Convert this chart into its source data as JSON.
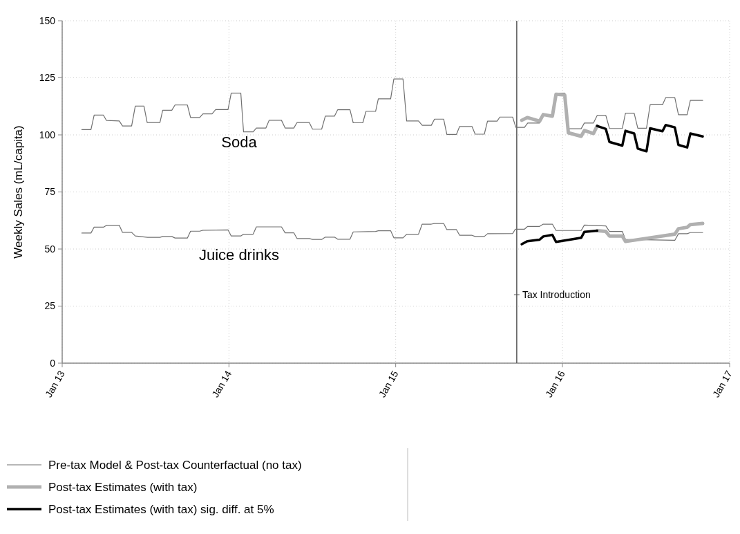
{
  "chart_data": {
    "type": "line",
    "ylabel": "Weekly Sales (mL/capita)",
    "xlim": [
      "2013-01-01",
      "2017-01-01"
    ],
    "ylim": [
      0,
      150
    ],
    "xticks": [
      {
        "value": "2013-01-01",
        "label": "Jan 13"
      },
      {
        "value": "2014-01-01",
        "label": "Jan 14"
      },
      {
        "value": "2015-01-01",
        "label": "Jan 15"
      },
      {
        "value": "2016-01-01",
        "label": "Jan 16"
      },
      {
        "value": "2017-01-01",
        "label": "Jan 17"
      }
    ],
    "yticks": [
      0,
      25,
      50,
      75,
      100,
      125,
      150
    ],
    "grid": true,
    "legend": "bottom",
    "ref_lines": [
      {
        "axis": "x",
        "value": "2015-09-23",
        "label": "Tax Introduction",
        "color": "#555555"
      }
    ],
    "annotations": [
      "Soda",
      "Juice drinks"
    ],
    "series": [
      {
        "name": "Pre-tax Model & Post-tax Counterfactual (no tax)",
        "color": "#707070",
        "x": [
          "2013-02-13",
          "2013-03-05",
          "2013-03-12",
          "2013-04-01",
          "2013-04-08",
          "2013-05-06",
          "2013-05-13",
          "2013-06-02",
          "2013-06-10",
          "2013-06-29",
          "2013-07-06",
          "2013-08-03",
          "2013-08-09",
          "2013-08-29",
          "2013-09-05",
          "2013-10-02",
          "2013-10-09",
          "2013-10-29",
          "2013-11-05",
          "2013-11-25",
          "2013-12-03",
          "2013-12-30",
          "2014-01-06",
          "2014-01-27",
          "2014-02-02",
          "2014-02-23",
          "2014-03-02",
          "2014-03-23",
          "2014-03-30",
          "2014-04-26",
          "2014-05-04",
          "2014-05-23",
          "2014-05-30",
          "2014-06-26",
          "2014-07-03",
          "2014-07-23",
          "2014-07-31",
          "2014-08-20",
          "2014-08-27",
          "2014-09-23",
          "2014-09-30",
          "2014-10-21",
          "2014-10-28",
          "2014-11-18",
          "2014-11-24",
          "2014-12-21",
          "2014-12-28",
          "2015-01-17",
          "2015-01-25",
          "2015-02-20",
          "2015-02-28",
          "2015-03-20",
          "2015-03-27",
          "2015-04-16",
          "2015-04-23",
          "2015-05-14",
          "2015-05-21",
          "2015-06-17",
          "2015-06-24",
          "2015-07-14",
          "2015-07-21",
          "2015-08-11",
          "2015-08-17",
          "2015-09-14",
          "2015-09-21",
          "2015-10-10",
          "2015-10-17",
          "2015-11-12",
          "2015-11-20",
          "2015-12-10",
          "2015-12-18",
          "2016-01-06",
          "2016-01-14",
          "2016-02-11",
          "2016-02-18",
          "2016-03-09",
          "2016-03-17",
          "2016-04-05",
          "2016-04-13",
          "2016-05-11",
          "2016-05-18",
          "2016-06-06",
          "2016-06-14",
          "2016-07-03",
          "2016-07-11",
          "2016-08-07",
          "2016-08-14",
          "2016-09-03",
          "2016-09-11",
          "2016-09-30",
          "2016-10-07",
          "2016-11-03"
        ],
        "values": [
          102.3,
          102.3,
          108.7,
          108.7,
          106.3,
          106.1,
          103.9,
          103.9,
          112.6,
          112.6,
          105.4,
          105.4,
          110.8,
          110.8,
          113.1,
          113.1,
          107.6,
          107.6,
          109.2,
          109.2,
          111.1,
          111.1,
          118.3,
          118.3,
          101.3,
          101.3,
          103,
          103,
          106.4,
          106.4,
          103,
          103,
          105.4,
          105.4,
          102.5,
          102.5,
          108.2,
          108.2,
          111,
          111,
          105.3,
          105.3,
          110.3,
          110.3,
          115.8,
          115.8,
          124.5,
          124.5,
          106.1,
          106.1,
          104.2,
          104.2,
          106.9,
          106.9,
          100.2,
          100.2,
          103.7,
          103.7,
          100.3,
          100.3,
          106,
          106,
          107.8,
          107.8,
          103.3,
          103.3,
          105.2,
          105.2,
          108.4,
          108.4,
          118.3,
          118.3,
          102.7,
          102.7,
          105.2,
          105.2,
          108.5,
          108.5,
          102.8,
          102.8,
          109.5,
          109.5,
          102.9,
          102.9,
          113.2,
          113.2,
          116.3,
          116.3,
          108.8,
          108.8,
          115.1,
          115.1
        ]
      },
      {
        "name": "Post-tax Estimates (with tax)",
        "color": "#b0b0b0",
        "x": [
          "2015-10-04",
          "2015-10-16",
          "2015-11-12",
          "2015-11-20",
          "2015-12-10",
          "2015-12-18",
          "2016-01-06",
          "2016-01-14",
          "2016-02-11",
          "2016-02-18",
          "2016-03-09",
          "2016-03-17"
        ],
        "values": [
          106.4,
          107.6,
          106,
          108.9,
          108.2,
          117.8,
          117.5,
          100.9,
          99.4,
          101.9,
          100.6,
          103.9
        ]
      },
      {
        "name": "Post-tax Estimates (with tax) sig. diff. at 5%",
        "color": "#000000",
        "x": [
          "2016-03-17",
          "2016-04-05",
          "2016-04-13",
          "2016-05-11",
          "2016-05-18",
          "2016-06-06",
          "2016-06-14",
          "2016-07-03",
          "2016-07-11",
          "2016-08-07",
          "2016-08-14",
          "2016-09-03",
          "2016-09-11",
          "2016-09-30",
          "2016-10-07",
          "2016-11-03"
        ],
        "values": [
          103.9,
          102.6,
          96.9,
          95.3,
          101.8,
          100.6,
          94,
          92.8,
          102.9,
          101.6,
          104.3,
          103.3,
          95.6,
          94.5,
          100.6,
          99.3
        ]
      },
      {
        "color": "#707070",
        "x": [
          "2013-02-13",
          "2013-03-05",
          "2013-03-12",
          "2013-04-02",
          "2013-04-08",
          "2013-05-06",
          "2013-05-13",
          "2013-06-02",
          "2013-06-10",
          "2013-07-07",
          "2013-08-03",
          "2013-08-09",
          "2013-08-29",
          "2013-09-05",
          "2013-10-02",
          "2013-10-09",
          "2013-10-29",
          "2013-11-05",
          "2013-12-30",
          "2014-01-06",
          "2014-01-27",
          "2014-02-02",
          "2014-02-23",
          "2014-03-02",
          "2014-04-26",
          "2014-05-04",
          "2014-05-23",
          "2014-05-30",
          "2014-06-26",
          "2014-07-03",
          "2014-07-23",
          "2014-07-31",
          "2014-08-20",
          "2014-08-27",
          "2014-09-23",
          "2014-09-30",
          "2014-11-18",
          "2014-11-24",
          "2014-12-21",
          "2014-12-28",
          "2015-01-17",
          "2015-01-25",
          "2015-02-20",
          "2015-02-28",
          "2015-03-20",
          "2015-03-27",
          "2015-04-16",
          "2015-04-23",
          "2015-05-14",
          "2015-05-21",
          "2015-06-17",
          "2015-06-24",
          "2015-07-14",
          "2015-07-21",
          "2015-09-14",
          "2015-09-20",
          "2015-10-10",
          "2015-10-17",
          "2015-11-12",
          "2015-11-20",
          "2015-12-10",
          "2015-12-18",
          "2016-02-11",
          "2016-02-18",
          "2016-04-05",
          "2016-04-13",
          "2016-05-11",
          "2016-05-18",
          "2016-09-03",
          "2016-09-11",
          "2016-09-30",
          "2016-10-07",
          "2016-11-03"
        ],
        "values": [
          57,
          57,
          59.6,
          59.6,
          60.4,
          60.4,
          57.3,
          57.3,
          55.7,
          55.1,
          55.1,
          55.5,
          55.5,
          54.8,
          54.8,
          57.8,
          57.8,
          58.2,
          58.4,
          55.7,
          55.7,
          56.5,
          56.5,
          59.7,
          59.7,
          57.1,
          57.1,
          54.6,
          54.6,
          54.2,
          54.2,
          55.2,
          55.2,
          54.3,
          54.3,
          57.5,
          57.7,
          58,
          58,
          54.9,
          54.9,
          56.5,
          56.5,
          60.9,
          60.9,
          61.2,
          61.2,
          58.5,
          58.5,
          56,
          56,
          55.5,
          55.5,
          56.7,
          56.8,
          58.7,
          58.7,
          59.9,
          59.9,
          60.9,
          60.9,
          58.1,
          58.1,
          60.5,
          60.1,
          57.7,
          57.7,
          54.2,
          53.8,
          56.7,
          56.7,
          57.2,
          57.2
        ]
      },
      {
        "color": "#b0b0b0",
        "x": [
          "2016-03-17",
          "2016-04-05",
          "2016-04-13",
          "2016-05-11",
          "2016-05-18",
          "2016-09-03",
          "2016-09-11",
          "2016-09-30",
          "2016-10-07",
          "2016-11-03"
        ],
        "values": [
          58,
          57.7,
          55.7,
          55.7,
          53.3,
          56.5,
          58.9,
          59.5,
          60.7,
          61.2
        ]
      },
      {
        "color": "#000000",
        "x": [
          "2015-10-04",
          "2015-10-16",
          "2015-11-12",
          "2015-11-20",
          "2015-12-10",
          "2015-12-18",
          "2016-02-11",
          "2016-02-18",
          "2016-03-17"
        ],
        "values": [
          52.1,
          53.4,
          54.1,
          55.5,
          56.2,
          53.1,
          54.9,
          57.5,
          58
        ]
      }
    ]
  }
}
